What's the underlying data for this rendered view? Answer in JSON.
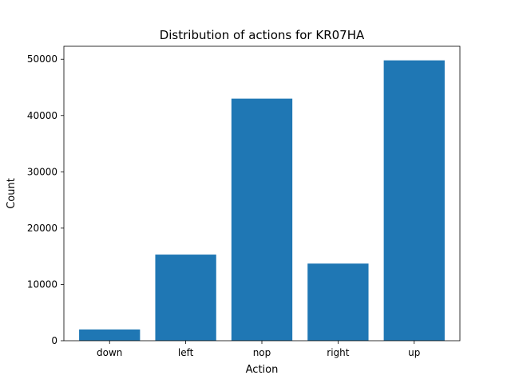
{
  "chart_data": {
    "type": "bar",
    "title": "Distribution of actions for KR07HA",
    "xlabel": "Action",
    "ylabel": "Count",
    "categories": [
      "down",
      "left",
      "nop",
      "right",
      "up"
    ],
    "values": [
      2000,
      15300,
      43000,
      13700,
      49800
    ],
    "ylim": [
      0,
      52300
    ],
    "yticks": [
      0,
      10000,
      20000,
      30000,
      40000,
      50000
    ],
    "ytick_labels": [
      "0",
      "10000",
      "20000",
      "30000",
      "40000",
      "50000"
    ],
    "grid": false,
    "legend": "none",
    "bar_color": "#1f77b4"
  }
}
